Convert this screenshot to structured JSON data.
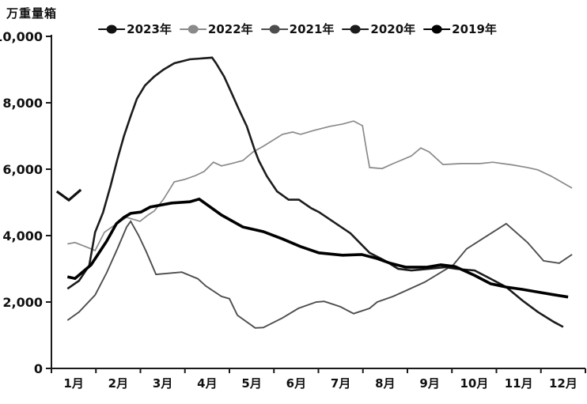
{
  "chart_data": {
    "type": "line",
    "unit_label": "万重量箱",
    "legend_position": "top-center",
    "grid": false,
    "ylim": [
      0,
      10000
    ],
    "y_axis": {
      "tick_values": [
        0,
        2000,
        4000,
        6000,
        8000,
        10000
      ],
      "tick_labels": [
        "0",
        "2,000",
        "4,000",
        "6,000",
        "8,000",
        "10,000"
      ]
    },
    "x_axis": {
      "tick_labels": [
        "1月",
        "2月",
        "3月",
        "4月",
        "5月",
        "6月",
        "7月",
        "8月",
        "9月",
        "10月",
        "11月",
        "12月"
      ],
      "note": "x in month units, 1 = mid-January, 12 = mid-December"
    },
    "series": [
      {
        "name": "2023年",
        "color": "#111111",
        "width": 3.2,
        "points": [
          [
            0.62,
            5330
          ],
          [
            0.89,
            5070
          ],
          [
            1.16,
            5380
          ]
        ]
      },
      {
        "name": "2022年",
        "color": "#8a8a8a",
        "width": 1.7,
        "points": [
          [
            0.86,
            3750
          ],
          [
            1.03,
            3790
          ],
          [
            1.3,
            3650
          ],
          [
            1.48,
            3550
          ],
          [
            1.69,
            4100
          ],
          [
            1.9,
            4300
          ],
          [
            2.19,
            4550
          ],
          [
            2.49,
            4430
          ],
          [
            2.67,
            4620
          ],
          [
            2.81,
            4740
          ],
          [
            3.02,
            5100
          ],
          [
            3.26,
            5620
          ],
          [
            3.49,
            5690
          ],
          [
            3.74,
            5810
          ],
          [
            3.93,
            5930
          ],
          [
            4.14,
            6210
          ],
          [
            4.32,
            6100
          ],
          [
            4.54,
            6170
          ],
          [
            4.8,
            6260
          ],
          [
            5.03,
            6520
          ],
          [
            5.26,
            6690
          ],
          [
            5.69,
            7050
          ],
          [
            5.92,
            7120
          ],
          [
            6.1,
            7050
          ],
          [
            6.4,
            7170
          ],
          [
            6.76,
            7290
          ],
          [
            7.04,
            7360
          ],
          [
            7.29,
            7450
          ],
          [
            7.49,
            7310
          ],
          [
            7.58,
            6570
          ],
          [
            7.65,
            6050
          ],
          [
            7.93,
            6020
          ],
          [
            8.18,
            6170
          ],
          [
            8.59,
            6400
          ],
          [
            8.8,
            6640
          ],
          [
            8.99,
            6520
          ],
          [
            9.3,
            6140
          ],
          [
            9.71,
            6170
          ],
          [
            10.13,
            6170
          ],
          [
            10.42,
            6210
          ],
          [
            10.85,
            6130
          ],
          [
            11.2,
            6050
          ],
          [
            11.43,
            5980
          ],
          [
            11.73,
            5790
          ],
          [
            12.02,
            5570
          ],
          [
            12.2,
            5430
          ]
        ]
      },
      {
        "name": "2021年",
        "color": "#4d4d4d",
        "width": 1.9,
        "points": [
          [
            0.86,
            1450
          ],
          [
            1.12,
            1700
          ],
          [
            1.48,
            2210
          ],
          [
            1.74,
            2880
          ],
          [
            1.98,
            3600
          ],
          [
            2.19,
            4260
          ],
          [
            2.28,
            4430
          ],
          [
            2.46,
            4000
          ],
          [
            2.63,
            3520
          ],
          [
            2.85,
            2830
          ],
          [
            3.08,
            2860
          ],
          [
            3.43,
            2900
          ],
          [
            3.79,
            2700
          ],
          [
            3.97,
            2480
          ],
          [
            4.32,
            2170
          ],
          [
            4.5,
            2100
          ],
          [
            4.68,
            1600
          ],
          [
            5.08,
            1220
          ],
          [
            5.26,
            1230
          ],
          [
            5.69,
            1520
          ],
          [
            6.05,
            1810
          ],
          [
            6.45,
            2000
          ],
          [
            6.63,
            2020
          ],
          [
            6.99,
            1860
          ],
          [
            7.29,
            1650
          ],
          [
            7.65,
            1810
          ],
          [
            7.82,
            2000
          ],
          [
            8.18,
            2170
          ],
          [
            8.89,
            2600
          ],
          [
            9.53,
            3120
          ],
          [
            9.83,
            3600
          ],
          [
            10.24,
            3950
          ],
          [
            10.72,
            4360
          ],
          [
            11.2,
            3790
          ],
          [
            11.56,
            3240
          ],
          [
            11.91,
            3170
          ],
          [
            12.2,
            3430
          ]
        ]
      },
      {
        "name": "2020年",
        "color": "#1c1c1c",
        "width": 2.6,
        "points": [
          [
            0.86,
            2400
          ],
          [
            1.12,
            2640
          ],
          [
            1.35,
            3100
          ],
          [
            1.48,
            4100
          ],
          [
            1.66,
            4700
          ],
          [
            1.83,
            5500
          ],
          [
            1.98,
            6290
          ],
          [
            2.13,
            7000
          ],
          [
            2.28,
            7600
          ],
          [
            2.42,
            8120
          ],
          [
            2.6,
            8520
          ],
          [
            2.81,
            8790
          ],
          [
            3.02,
            9000
          ],
          [
            3.26,
            9190
          ],
          [
            3.61,
            9310
          ],
          [
            4.11,
            9360
          ],
          [
            4.2,
            9190
          ],
          [
            4.38,
            8790
          ],
          [
            4.55,
            8290
          ],
          [
            4.71,
            7810
          ],
          [
            4.89,
            7290
          ],
          [
            5.07,
            6570
          ],
          [
            5.16,
            6260
          ],
          [
            5.34,
            5790
          ],
          [
            5.57,
            5330
          ],
          [
            5.83,
            5080
          ],
          [
            6.06,
            5080
          ],
          [
            6.33,
            4830
          ],
          [
            6.51,
            4710
          ],
          [
            7.22,
            4070
          ],
          [
            7.65,
            3480
          ],
          [
            8.0,
            3240
          ],
          [
            8.29,
            3000
          ],
          [
            8.59,
            2950
          ],
          [
            8.99,
            3000
          ],
          [
            9.34,
            3050
          ],
          [
            9.59,
            3000
          ],
          [
            10.01,
            2950
          ],
          [
            10.37,
            2700
          ],
          [
            10.72,
            2450
          ],
          [
            11.08,
            2050
          ],
          [
            11.43,
            1700
          ],
          [
            11.79,
            1400
          ],
          [
            12.0,
            1250
          ]
        ]
      },
      {
        "name": "2019年",
        "color": "#000000",
        "width": 3.6,
        "points": [
          [
            0.86,
            2760
          ],
          [
            1.03,
            2710
          ],
          [
            1.39,
            3120
          ],
          [
            1.74,
            3830
          ],
          [
            1.96,
            4360
          ],
          [
            2.13,
            4550
          ],
          [
            2.28,
            4670
          ],
          [
            2.51,
            4710
          ],
          [
            2.72,
            4860
          ],
          [
            3.2,
            4980
          ],
          [
            3.61,
            5020
          ],
          [
            3.82,
            5100
          ],
          [
            4.32,
            4620
          ],
          [
            4.8,
            4260
          ],
          [
            5.26,
            4120
          ],
          [
            5.69,
            3900
          ],
          [
            6.1,
            3670
          ],
          [
            6.51,
            3480
          ],
          [
            7.04,
            3410
          ],
          [
            7.47,
            3430
          ],
          [
            7.82,
            3310
          ],
          [
            8.11,
            3170
          ],
          [
            8.46,
            3050
          ],
          [
            8.94,
            3050
          ],
          [
            9.25,
            3120
          ],
          [
            9.57,
            3070
          ],
          [
            10.01,
            2800
          ],
          [
            10.37,
            2550
          ],
          [
            10.72,
            2450
          ],
          [
            11.08,
            2380
          ],
          [
            11.43,
            2300
          ],
          [
            11.79,
            2220
          ],
          [
            12.11,
            2150
          ]
        ]
      }
    ],
    "draw_order": [
      1,
      2,
      3,
      4,
      0
    ]
  }
}
